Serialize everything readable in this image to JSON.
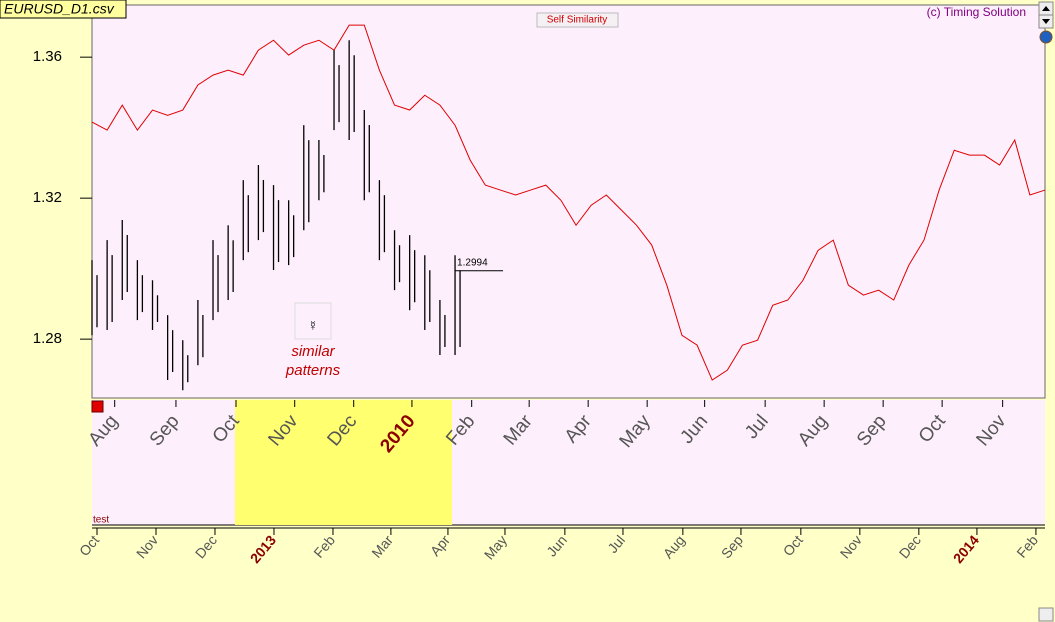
{
  "window_title": "EURUSD_D1.csv",
  "button": "Self Similarity",
  "copyright": "(c) Timing Solution",
  "band_label": "test",
  "chart_data": {
    "type": "line",
    "annotation": "similar patterns",
    "xlim": [
      0,
      63
    ],
    "ylim": [
      1.2633,
      1.3748
    ],
    "yticks": [
      1.28,
      1.32,
      1.36
    ],
    "series": [
      {
        "color": "#e00000",
        "values": [
          1.3416,
          1.3393,
          1.3464,
          1.3393,
          1.345,
          1.3435,
          1.345,
          1.3521,
          1.3549,
          1.3563,
          1.3549,
          1.362,
          1.3648,
          1.3606,
          1.3634,
          1.3648,
          1.362,
          1.3691,
          1.3691,
          1.3563,
          1.3464,
          1.345,
          1.3492,
          1.3464,
          1.3407,
          1.3308,
          1.3237,
          1.3223,
          1.3209,
          1.3223,
          1.3237,
          1.3194,
          1.3123,
          1.318,
          1.3209,
          1.3166,
          1.3123,
          1.3067,
          1.2953,
          1.2811,
          1.2783,
          1.2684,
          1.2712,
          1.2783,
          1.2797,
          1.2896,
          1.2911,
          1.2967,
          1.3052,
          1.3081,
          1.2953,
          1.2925,
          1.2939,
          1.2911,
          1.301,
          1.3081,
          1.3223,
          1.3336,
          1.3322,
          1.3322,
          1.3294,
          1.3365,
          1.3209,
          1.3223
        ]
      }
    ],
    "bars": {
      "color": "#000000",
      "high": [
        1.3024,
        1.3081,
        1.3138,
        1.3024,
        1.2967,
        1.2868,
        1.2797,
        1.2911,
        1.3081,
        1.3123,
        1.3251,
        1.3294,
        1.3237,
        1.3194,
        1.3407,
        1.3365,
        1.362,
        1.3648,
        1.345,
        1.3251,
        1.3109,
        1.3095,
        1.3038,
        1.2911,
        1.3038
      ],
      "low": [
        1.2811,
        1.2826,
        1.2911,
        1.2854,
        1.2826,
        1.2684,
        1.2655,
        1.2726,
        1.2854,
        1.2911,
        1.3024,
        1.3081,
        1.2996,
        1.301,
        1.3109,
        1.3194,
        1.3393,
        1.3365,
        1.3194,
        1.3024,
        1.2939,
        1.2882,
        1.2826,
        1.2755,
        1.2755
      ]
    },
    "last_price": 1.2994,
    "highlight_x": [
      9.45,
      23.8
    ],
    "emphasis_color": "#8b0000",
    "xticks_top": [
      {
        "value": 1.5,
        "label": "Aug"
      },
      {
        "value": 5.55,
        "label": "Sep"
      },
      {
        "value": 9.52,
        "label": "Oct"
      },
      {
        "value": 13.4,
        "label": "Nov"
      },
      {
        "value": 17.3,
        "label": "Dec"
      },
      {
        "value": 21.15,
        "label": "2010",
        "emphasis": true
      },
      {
        "value": 25.1,
        "label": "Feb"
      },
      {
        "value": 28.9,
        "label": "Mar"
      },
      {
        "value": 32.8,
        "label": "Apr"
      },
      {
        "value": 36.7,
        "label": "May"
      },
      {
        "value": 40.5,
        "label": "Jun"
      },
      {
        "value": 44.5,
        "label": "Jul"
      },
      {
        "value": 48.4,
        "label": "Aug"
      },
      {
        "value": 52.3,
        "label": "Sep"
      },
      {
        "value": 56.2,
        "label": "Oct"
      },
      {
        "value": 60.2,
        "label": "Nov"
      }
    ],
    "xticks": [
      {
        "value": 0.33,
        "label": "Oct"
      },
      {
        "value": 4.23,
        "label": "Nov"
      },
      {
        "value": 8.13,
        "label": "Dec"
      },
      {
        "value": 12.03,
        "label": "2013",
        "emphasis": true
      },
      {
        "value": 15.93,
        "label": "Feb"
      },
      {
        "value": 19.76,
        "label": "Mar"
      },
      {
        "value": 23.53,
        "label": "Apr"
      },
      {
        "value": 27.3,
        "label": "May"
      },
      {
        "value": 31.26,
        "label": "Jun"
      },
      {
        "value": 35.1,
        "label": "Jul"
      },
      {
        "value": 39.06,
        "label": "Aug"
      },
      {
        "value": 42.9,
        "label": "Sep"
      },
      {
        "value": 46.86,
        "label": "Oct"
      },
      {
        "value": 50.76,
        "label": "Nov"
      },
      {
        "value": 54.66,
        "label": "Dec"
      },
      {
        "value": 58.5,
        "label": "2014",
        "emphasis": true
      },
      {
        "value": 62.4,
        "label": "Feb"
      }
    ]
  }
}
